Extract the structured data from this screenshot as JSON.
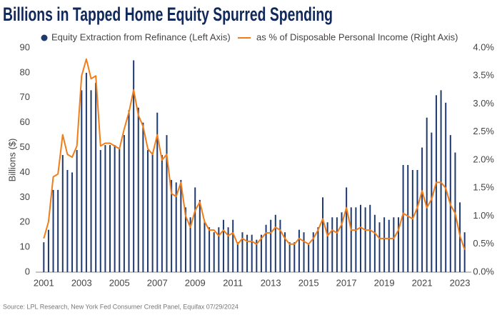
{
  "chart_data": {
    "type": "bar_line",
    "title": "Billions in Tapped Home Equity Spurred Spending",
    "y_label": "Billions ($)",
    "source": "Source: LPL Research, New York Fed Consumer Credit Panel, Equifax 07/29/2024",
    "categories": [
      "2001",
      null,
      null,
      null,
      null,
      null,
      null,
      null,
      "2003",
      null,
      null,
      null,
      null,
      null,
      null,
      null,
      "2005",
      null,
      null,
      null,
      null,
      null,
      null,
      null,
      "2007",
      null,
      null,
      null,
      null,
      null,
      null,
      null,
      "2009",
      null,
      null,
      null,
      null,
      null,
      null,
      null,
      "2011",
      null,
      null,
      null,
      null,
      null,
      null,
      null,
      "2013",
      null,
      null,
      null,
      null,
      null,
      null,
      null,
      "2015",
      null,
      null,
      null,
      null,
      null,
      null,
      null,
      "2017",
      null,
      null,
      null,
      null,
      null,
      null,
      null,
      "2019",
      null,
      null,
      null,
      null,
      null,
      null,
      null,
      "2021",
      null,
      null,
      null,
      null,
      null,
      null,
      null,
      "2023",
      null
    ],
    "series": [
      {
        "name": "Equity Extraction from Refinance (Left Axis)",
        "color": "#1f3a6e",
        "type": "bar",
        "values": [
          12,
          17,
          33,
          33,
          47,
          41,
          40,
          49,
          73,
          80,
          73,
          76,
          49,
          51,
          51,
          51,
          50,
          55,
          65,
          85,
          66,
          60,
          49,
          48,
          64,
          47,
          55,
          37,
          36,
          37,
          26,
          22,
          34,
          29,
          20,
          18,
          16,
          18,
          21,
          18,
          21,
          12,
          16,
          15,
          15,
          13,
          15,
          19,
          21,
          23,
          21,
          16,
          12,
          12,
          17,
          16,
          11,
          16,
          18,
          30,
          20,
          22,
          22,
          24,
          34,
          26,
          26,
          27,
          26,
          27,
          23,
          20,
          22,
          21,
          22,
          22,
          43,
          43,
          41,
          41,
          50,
          62,
          56,
          71,
          73,
          68,
          55,
          48,
          28,
          16
        ]
      },
      {
        "name": "as % of Disposable Personal Income (Right Axis)",
        "color": "#f07d1a",
        "type": "line",
        "axis": "y2",
        "values": [
          0.6,
          0.9,
          1.7,
          1.75,
          2.45,
          2.1,
          2.05,
          2.25,
          3.5,
          3.8,
          3.45,
          3.5,
          2.25,
          2.3,
          2.3,
          2.25,
          2.2,
          2.55,
          2.85,
          3.25,
          2.8,
          2.6,
          2.2,
          2.1,
          2.45,
          2.0,
          2.1,
          1.4,
          1.35,
          1.6,
          1.0,
          0.8,
          1.1,
          1.25,
          0.9,
          0.75,
          0.75,
          0.65,
          0.75,
          0.65,
          0.7,
          0.5,
          0.6,
          0.55,
          0.55,
          0.5,
          0.6,
          0.7,
          0.7,
          0.8,
          0.75,
          0.6,
          0.5,
          0.5,
          0.6,
          0.55,
          0.5,
          0.6,
          0.75,
          0.95,
          0.65,
          0.75,
          0.7,
          0.85,
          1.15,
          0.75,
          0.75,
          0.8,
          0.75,
          0.75,
          0.7,
          0.6,
          0.6,
          0.6,
          0.6,
          0.75,
          1.05,
          1.0,
          0.95,
          1.15,
          1.45,
          1.15,
          1.3,
          1.6,
          1.6,
          1.5,
          1.2,
          1.05,
          0.65,
          0.4
        ]
      }
    ],
    "ylim": [
      0,
      90
    ],
    "yticks": [
      0,
      10,
      20,
      30,
      40,
      50,
      60,
      70,
      80,
      90
    ],
    "y2lim": [
      0,
      4
    ],
    "y2ticks": [
      {
        "value": 0,
        "label": "0.0%"
      },
      {
        "value": 0.5,
        "label": "0.5%"
      },
      {
        "value": 1,
        "label": "1.0%"
      },
      {
        "value": 1.5,
        "label": "1.5%"
      },
      {
        "value": 2,
        "label": "2.0%"
      },
      {
        "value": 2.5,
        "label": "2.5%"
      },
      {
        "value": 3,
        "label": "3.0%"
      },
      {
        "value": 3.5,
        "label": "3.5%"
      },
      {
        "value": 4,
        "label": "4.0%"
      }
    ],
    "grid": false
  }
}
